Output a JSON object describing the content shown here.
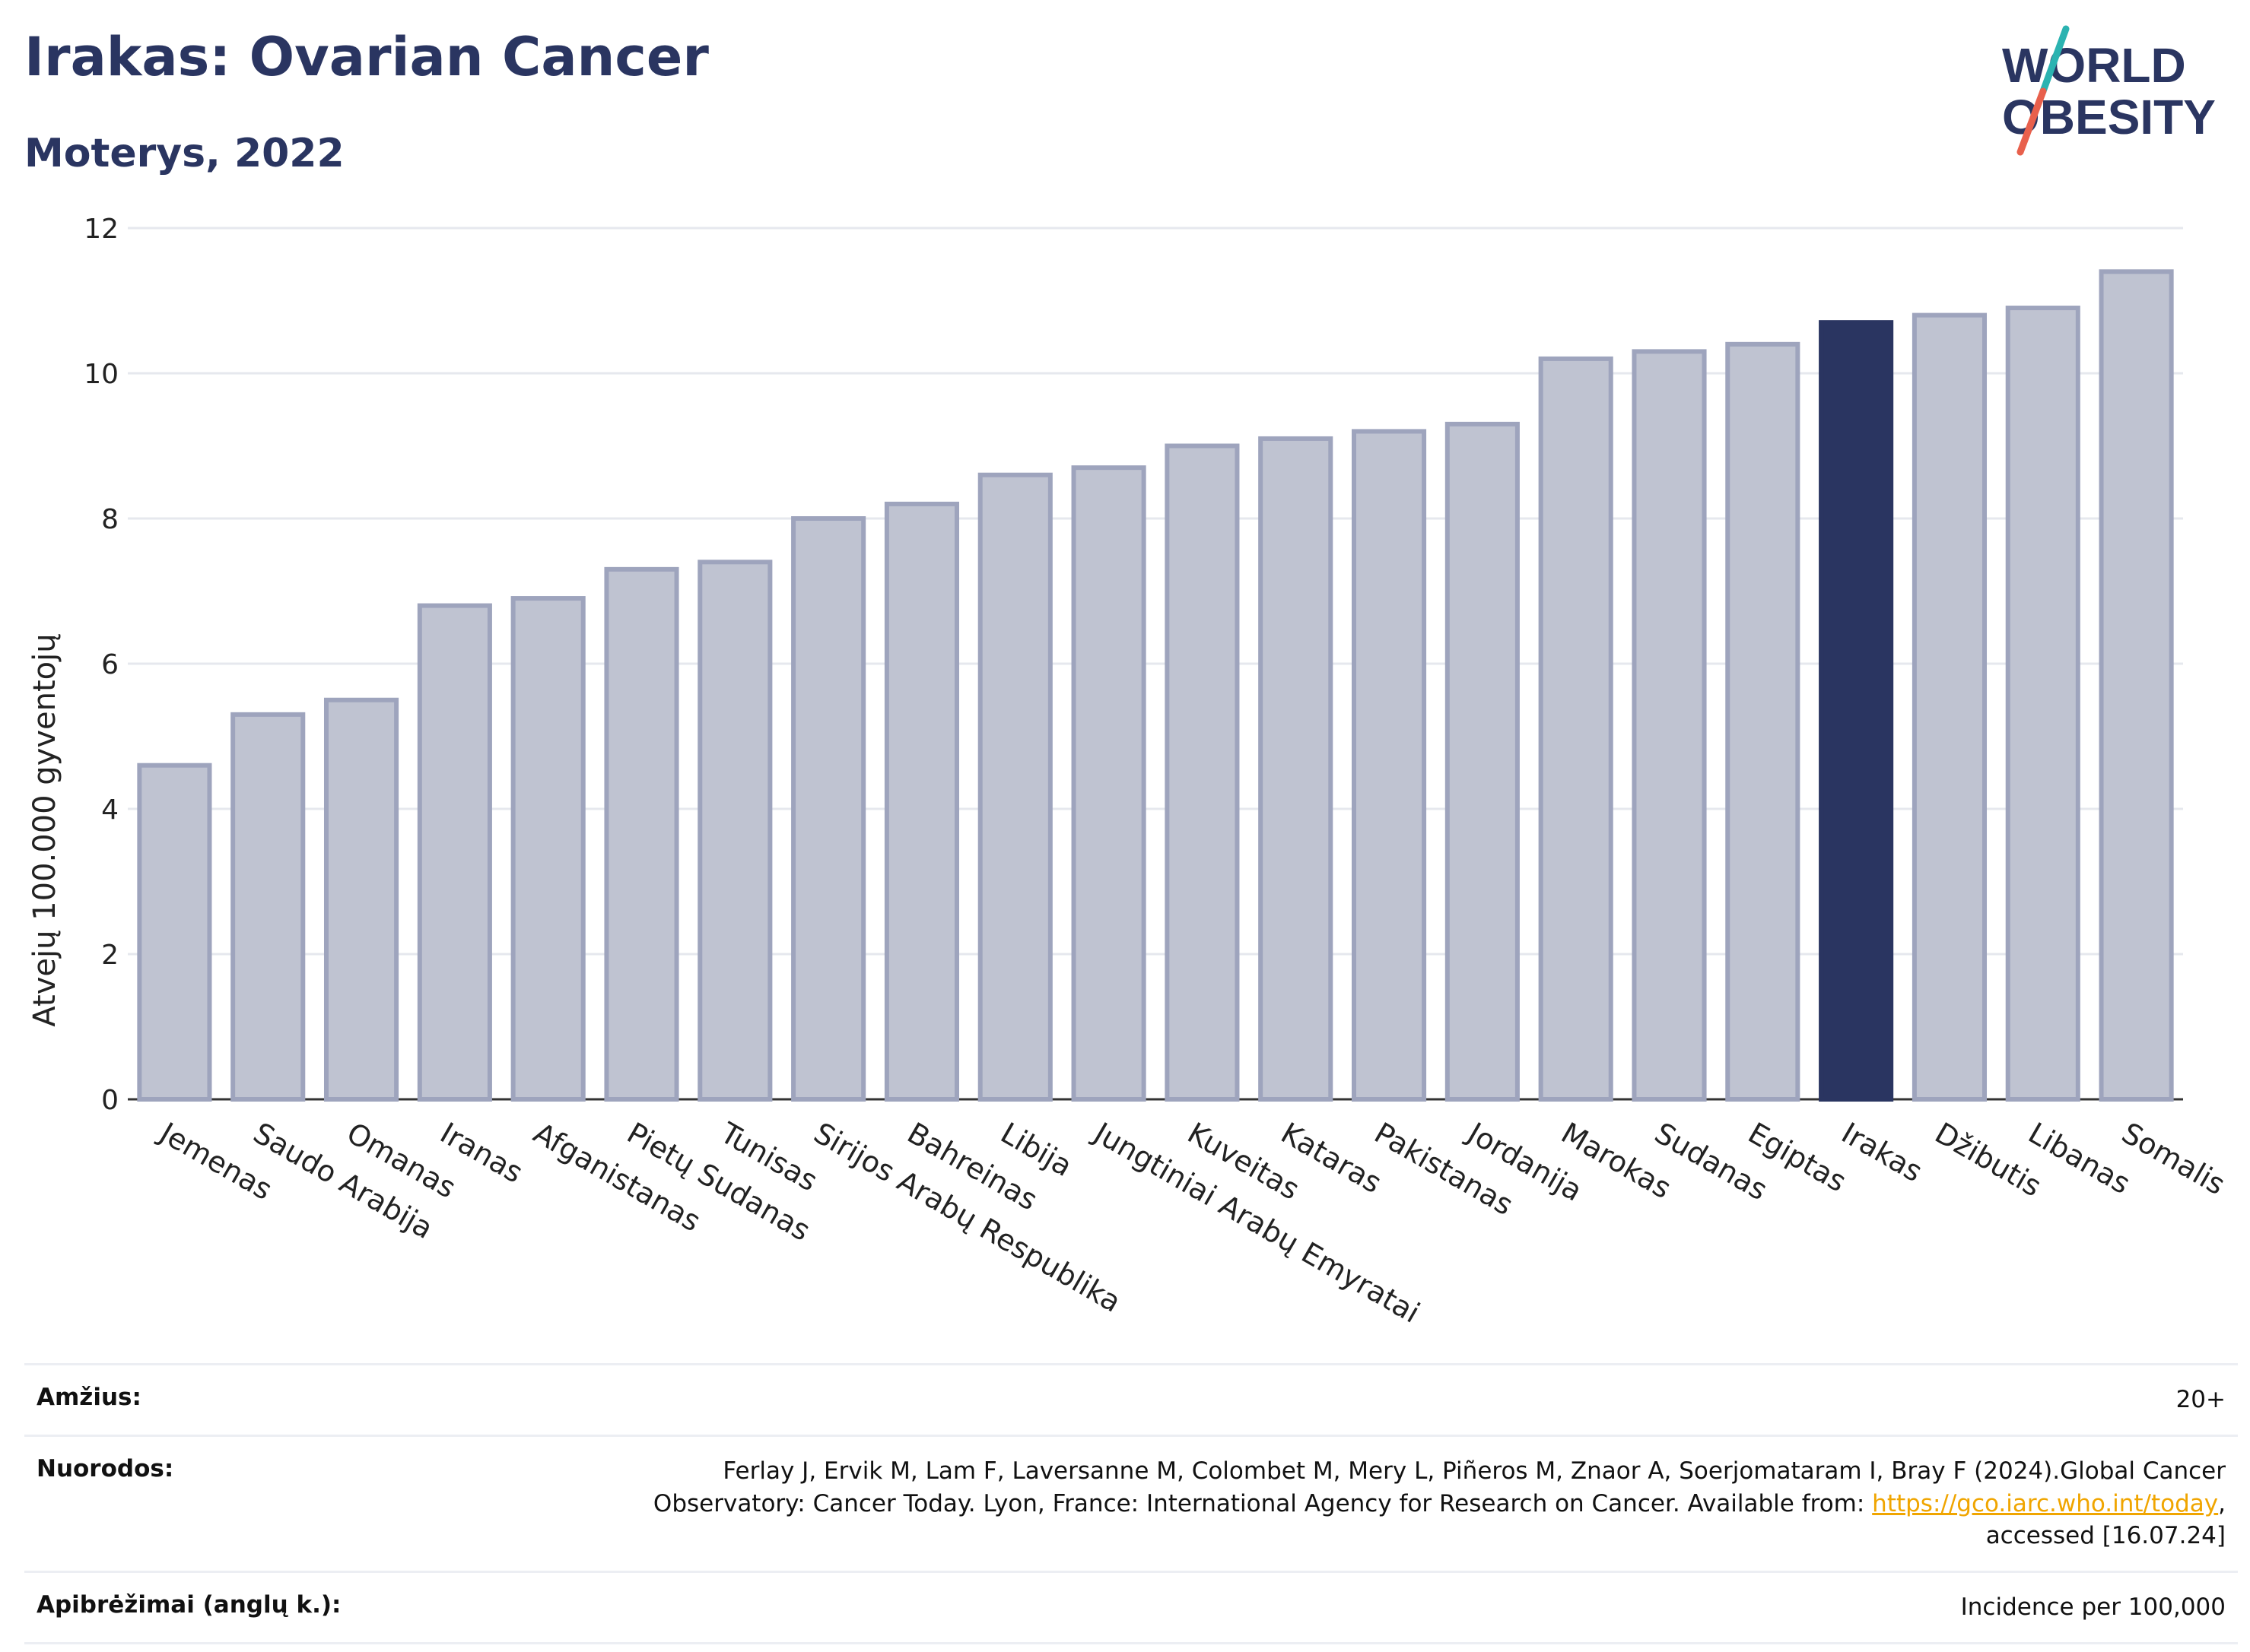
{
  "header": {
    "title": "Irakas: Ovarian Cancer",
    "subtitle": "Moterys, 2022"
  },
  "logo": {
    "line1": "WORLD",
    "line2": "OBESITY",
    "colors": {
      "text": "#2a3561",
      "slash_top": "#2bb3b1",
      "slash_bottom": "#e8604c"
    }
  },
  "chart_data": {
    "type": "bar",
    "ylabel": "Atvejų 100.000 gyventojų",
    "ylim": [
      0,
      12
    ],
    "yticks": [
      0,
      2,
      4,
      6,
      8,
      10,
      12
    ],
    "grid": true,
    "highlight": "Irakas",
    "colors": {
      "bar": "#bfc3d1",
      "bar_border": "#9ea4bd",
      "highlight": "#2a3561"
    },
    "categories": [
      "Jemenas",
      "Saudo Arabija",
      "Omanas",
      "Iranas",
      "Afganistanas",
      "Pietų Sudanas",
      "Tunisas",
      "Sirijos Arabų Respublika",
      "Bahreinas",
      "Libija",
      "Jungtiniai Arabų Emyratai",
      "Kuveitas",
      "Kataras",
      "Pakistanas",
      "Jordanija",
      "Marokas",
      "Sudanas",
      "Egiptas",
      "Irakas",
      "Džibutis",
      "Libanas",
      "Somalis"
    ],
    "values": [
      4.6,
      5.3,
      5.5,
      6.8,
      6.9,
      7.3,
      7.4,
      8.0,
      8.2,
      8.6,
      8.7,
      9.0,
      9.1,
      9.2,
      9.3,
      10.2,
      10.3,
      10.4,
      10.7,
      10.8,
      10.9,
      11.4
    ]
  },
  "meta": {
    "age": {
      "label": "Amžius:",
      "value": "20+"
    },
    "references": {
      "label": "Nuorodos:",
      "line1": "Ferlay J, Ervik M, Lam F, Laversanne M, Colombet M, Mery L, Piñeros M, Znaor A, Soerjomataram I, Bray F (2024).Global Cancer",
      "line2_before": "Observatory: Cancer Today. Lyon, France: International Agency for Research on Cancer. Available from: ",
      "link": "https://gco.iarc.who.int/today",
      "line2_after": ",",
      "line3": "accessed [16.07.24]"
    },
    "definitions": {
      "label": "Apibrėžimai (anglų k.):",
      "value": "Incidence per 100,000"
    }
  }
}
